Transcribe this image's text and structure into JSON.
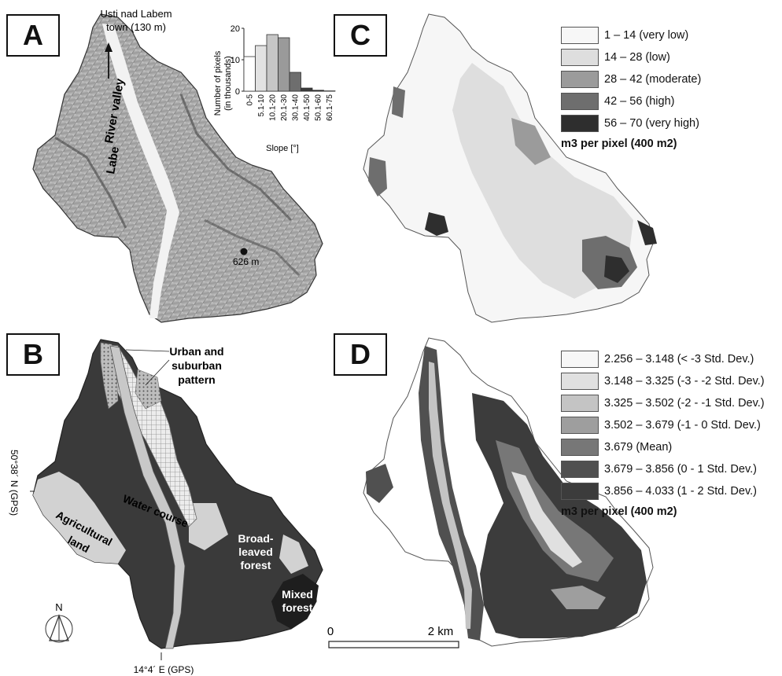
{
  "panels": {
    "a": {
      "letter": "A",
      "town_label_1": "Usti nad Labem",
      "town_label_2": "town (130 m)",
      "river_label": "Labe",
      "valley_label": "River valley",
      "peak_label": "626 m",
      "colors": {
        "relief_light": "#e6e6e6",
        "relief_dark": "#5a5a5a"
      }
    },
    "b": {
      "letter": "B",
      "urban_label_1": "Urban and",
      "urban_label_2": "suburban",
      "urban_label_3": "pattern",
      "water_label": "Water course",
      "agri_label_1": "Agricultural",
      "agri_label_2": "land",
      "broad_label_1": "Broad-",
      "broad_label_2": "leaved",
      "broad_label_3": "forest",
      "mixed_label_1": "Mixed",
      "mixed_label_2": "forest",
      "lat_label": "50°38´ N (GPS)",
      "lon_label": "14°4´ E (GPS)",
      "north_label": "N",
      "colors": {
        "forest": "#3a3a3a",
        "agri": "#d2d2d2",
        "water": "#c8c8c8",
        "mixed": "#1e1e1e"
      }
    },
    "c": {
      "letter": "C",
      "legend": [
        {
          "label": "1 – 14 (very low)",
          "color": "#f7f7f7"
        },
        {
          "label": "14 – 28 (low)",
          "color": "#dedede"
        },
        {
          "label": "28 – 42 (moderate)",
          "color": "#9b9b9b"
        },
        {
          "label": "42 – 56 (high)",
          "color": "#6e6e6e"
        },
        {
          "label": "56 – 70 (very high)",
          "color": "#2e2e2e"
        }
      ],
      "unit": "m3 per pixel (400 m2)"
    },
    "d": {
      "letter": "D",
      "legend": [
        {
          "label": "2.256 – 3.148 (< -3 Std. Dev.)",
          "color": "#f7f7f7"
        },
        {
          "label": "3.148 – 3.325 (-3 - -2 Std. Dev.)",
          "color": "#e0e0e0"
        },
        {
          "label": "3.325 – 3.502 (-2 - -1 Std. Dev.)",
          "color": "#c4c4c4"
        },
        {
          "label": "3.502 – 3.679 (-1 - 0 Std. Dev.)",
          "color": "#9e9e9e"
        },
        {
          "label": "3.679 (Mean)",
          "color": "#777777"
        },
        {
          "label": "3.679 – 3.856 (0 - 1 Std. Dev.)",
          "color": "#505050"
        },
        {
          "label": "3.856 – 4.033 (1 - 2 Std. Dev.)",
          "color": "#3c3c3c"
        }
      ],
      "unit": "m3 per pixel (400 m2)",
      "scale_start": "0",
      "scale_end": "2 km"
    }
  },
  "chart_data": {
    "type": "bar",
    "categories": [
      "0-5",
      "5.1-10",
      "10.1-20",
      "20.1-30",
      "30.1-40",
      "40.1-50",
      "50.1-60",
      "60.1-75"
    ],
    "values": [
      11,
      14.5,
      18,
      17,
      6,
      1,
      0.3,
      0.1
    ],
    "colors": [
      "#ffffff",
      "#e2e2e2",
      "#c6c6c6",
      "#9a9a9a",
      "#6e6e6e",
      "#3a3a3a",
      "#222222",
      "#111111"
    ],
    "yticks": [
      "0",
      "10",
      "20"
    ],
    "ylim": [
      0,
      20
    ],
    "xlabel": "Slope [°]",
    "ylabel_1": "Number of pixels",
    "ylabel_2": "(in thousands)",
    "grid": false
  }
}
